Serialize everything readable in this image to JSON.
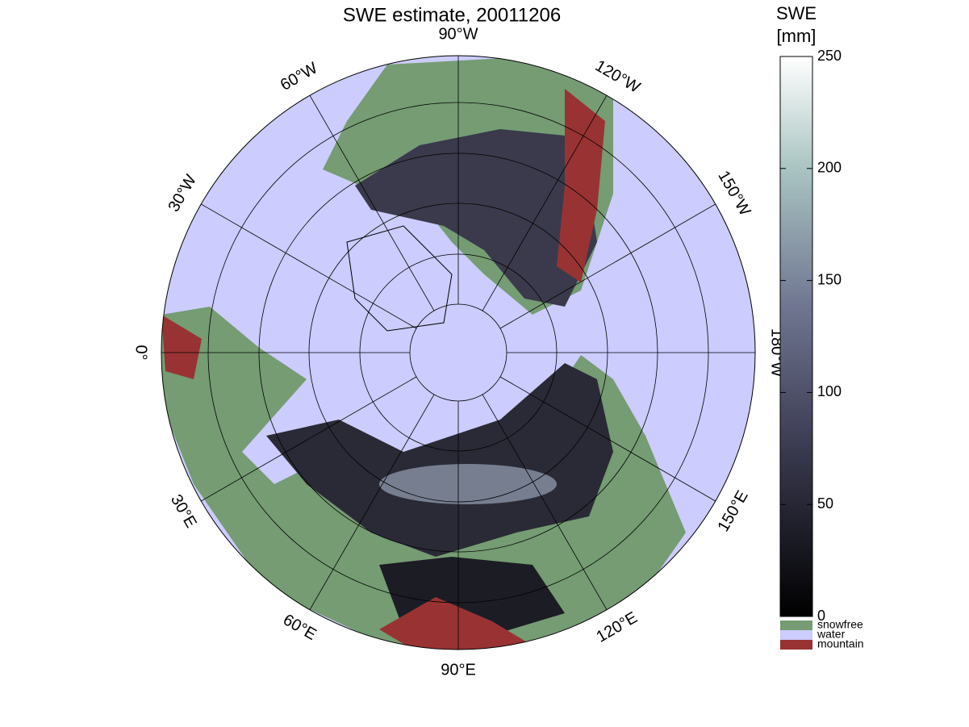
{
  "title": "SWE estimate, 20011206",
  "longitude_labels": [
    "0°",
    "30°E",
    "60°E",
    "90°E",
    "120°E",
    "150°E",
    "180°W",
    "150°W",
    "120°W",
    "90°W",
    "60°W",
    "30°W"
  ],
  "colorbar": {
    "title_lines": [
      "SWE",
      "[mm]"
    ],
    "ylim": [
      0,
      250
    ],
    "ticks": [
      0,
      50,
      100,
      150,
      200,
      250
    ]
  },
  "legend": [
    {
      "label": "snowfree",
      "color": "#759c73"
    },
    {
      "label": "water",
      "color": "#ccccff"
    },
    {
      "label": "mountain",
      "color": "#993333"
    }
  ]
}
